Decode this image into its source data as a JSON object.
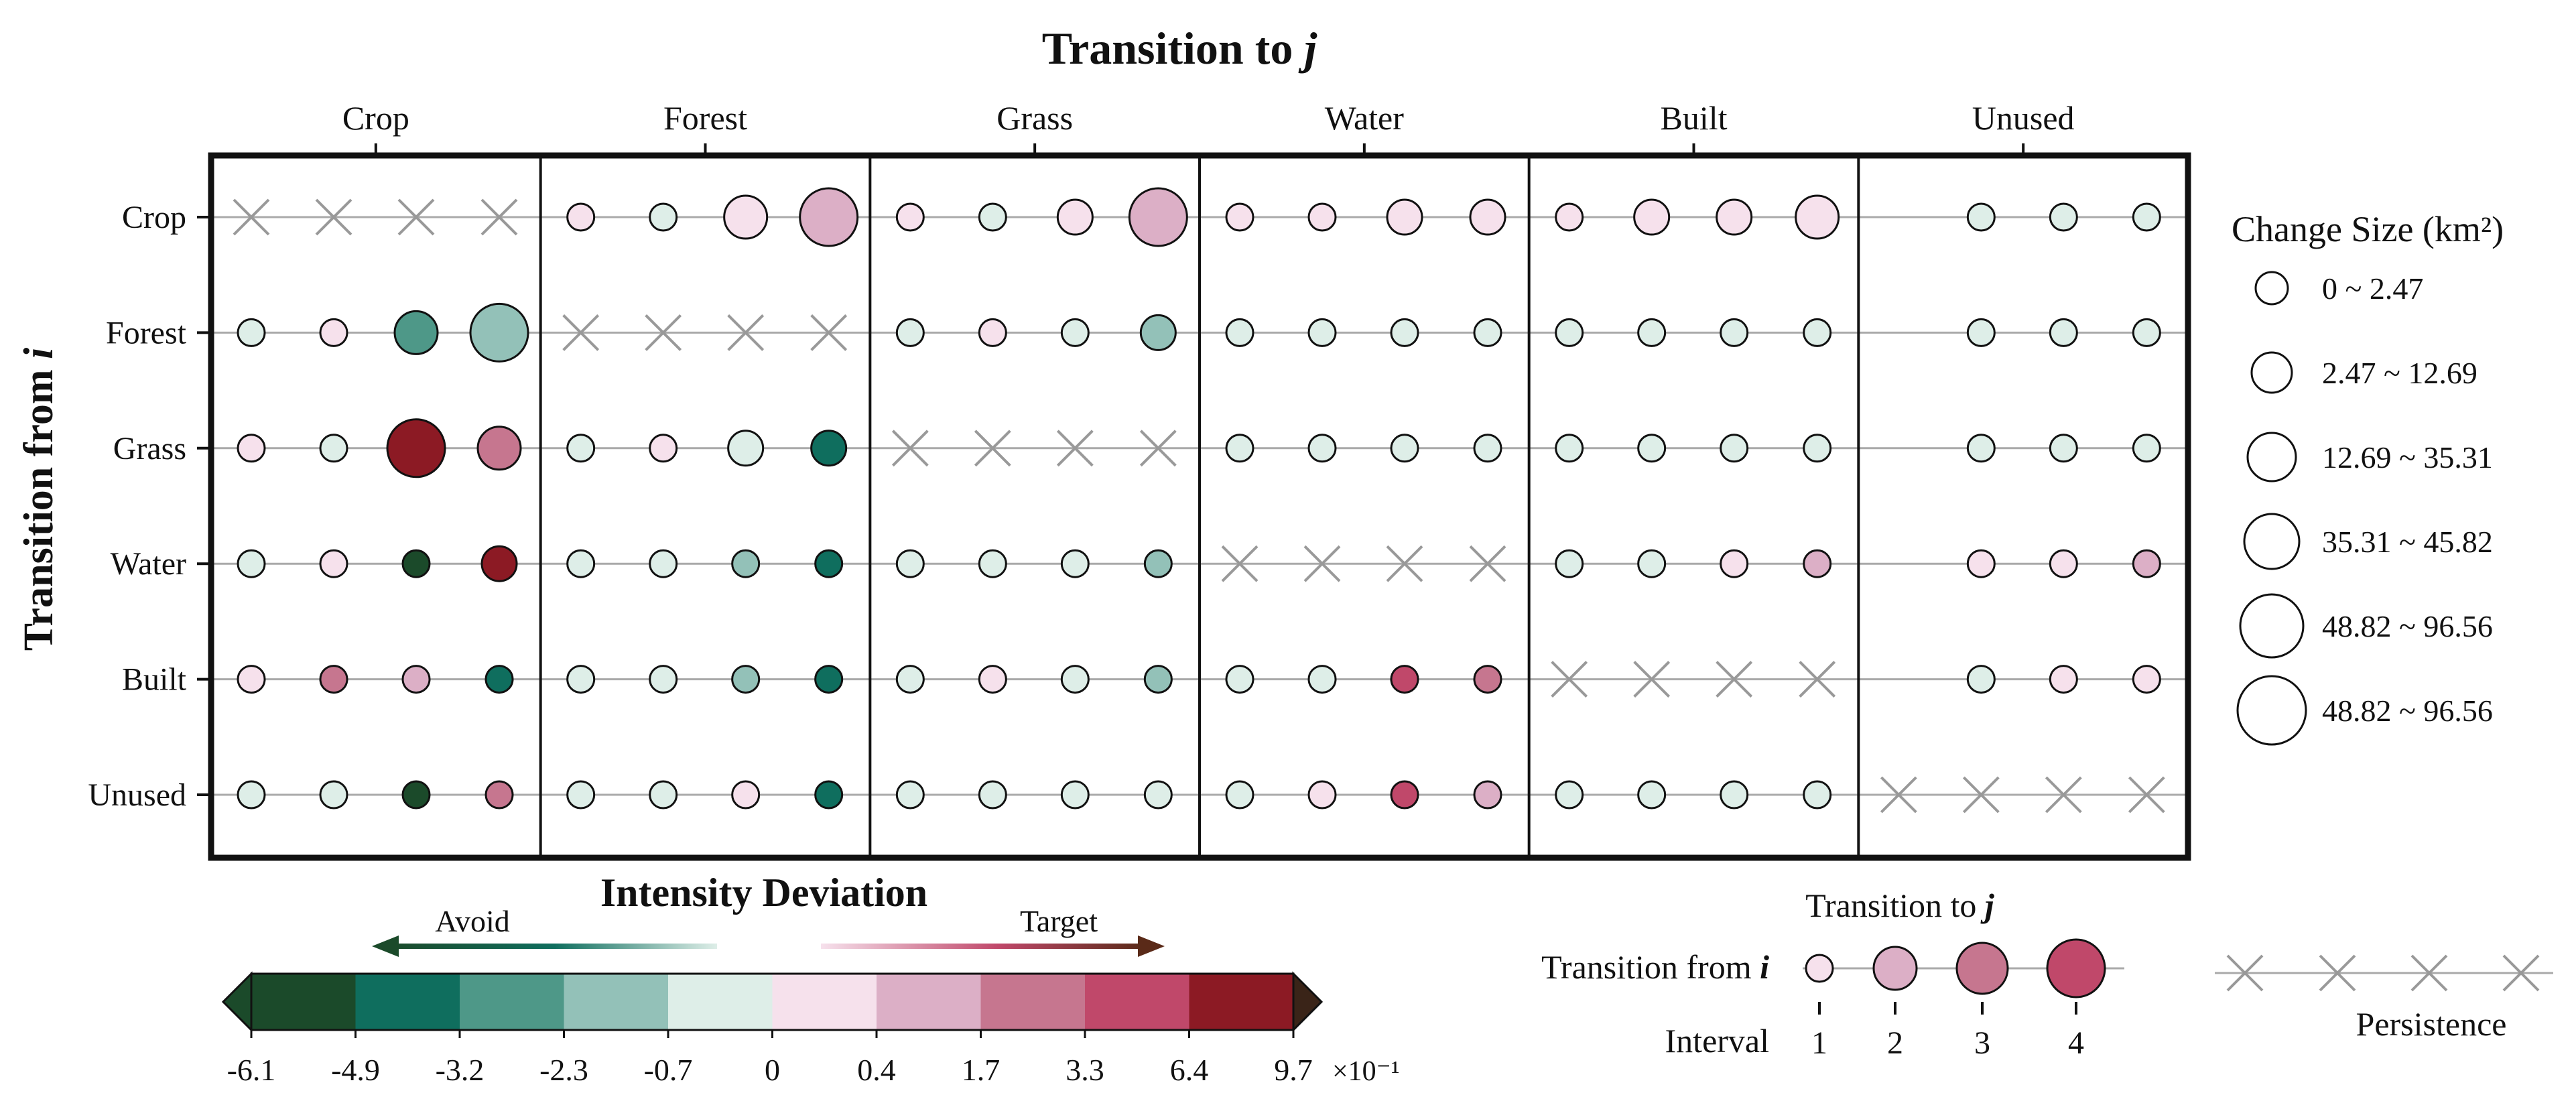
{
  "chart_data": {
    "type": "matrix-bubble",
    "title_prefix": "Transition to ",
    "title_var": "j",
    "ylabel_prefix": "Transition from ",
    "ylabel_var": "i",
    "categories": [
      "Crop",
      "Forest",
      "Grass",
      "Water",
      "Built",
      "Unused"
    ],
    "intervals": [
      1,
      2,
      3,
      4
    ],
    "colorbar": {
      "title": "Intensity Deviation",
      "avoid_label": "Avoid",
      "target_label": "Target",
      "ticks": [
        "-6.1",
        "-4.9",
        "-3.2",
        "-2.3",
        "-0.7",
        "0",
        "0.4",
        "1.7",
        "3.3",
        "6.4",
        "9.7"
      ],
      "scale_label": "×10⁻¹",
      "colors": [
        "#1b4a2a",
        "#0f6e5e",
        "#4e9888",
        "#93c1b8",
        "#deeee8",
        "#f6e1ec",
        "#dcafc6",
        "#c6768f",
        "#c0486a",
        "#8c1a24"
      ]
    },
    "size_legend": {
      "title": "Change Size (km²)",
      "entries": [
        "0 ~ 2.47",
        "2.47 ~ 12.69",
        "12.69 ~ 35.31",
        "35.31 ~ 45.82",
        "48.82 ~ 96.56",
        "48.82 ~ 96.56"
      ]
    },
    "interval_legend": {
      "top_prefix": "Transition to ",
      "top_var": "j",
      "left_prefix": "Transition from ",
      "left_var": "i",
      "interval_label": "Interval",
      "numbers": [
        "1",
        "2",
        "3",
        "4"
      ],
      "persistence_label": "Persistence"
    },
    "cells": {
      "_note": "keys are from-class; each from-class maps to-class -> 4 intervals of [color_index (0-9), size_class (0-5)], or 'P' for persistence, null for absent",
      "Crop": {
        "Crop": "P",
        "Forest": [
          [
            5,
            0
          ],
          [
            4,
            0
          ],
          [
            5,
            2
          ],
          [
            6,
            4
          ]
        ],
        "Grass": [
          [
            5,
            0
          ],
          [
            4,
            0
          ],
          [
            5,
            1
          ],
          [
            6,
            4
          ]
        ],
        "Water": [
          [
            5,
            0
          ],
          [
            5,
            0
          ],
          [
            5,
            1
          ],
          [
            5,
            1
          ]
        ],
        "Built": [
          [
            5,
            0
          ],
          [
            5,
            1
          ],
          [
            5,
            1
          ],
          [
            5,
            2
          ]
        ],
        "Unused": [
          null,
          [
            4,
            0
          ],
          [
            4,
            0
          ],
          [
            4,
            0
          ]
        ]
      },
      "Forest": {
        "Crop": [
          [
            4,
            0
          ],
          [
            5,
            0
          ],
          [
            2,
            2
          ],
          [
            3,
            4
          ]
        ],
        "Forest": "P",
        "Grass": [
          [
            4,
            0
          ],
          [
            5,
            0
          ],
          [
            4,
            0
          ],
          [
            3,
            1
          ]
        ],
        "Water": [
          [
            4,
            0
          ],
          [
            4,
            0
          ],
          [
            4,
            0
          ],
          [
            4,
            0
          ]
        ],
        "Built": [
          [
            4,
            0
          ],
          [
            4,
            0
          ],
          [
            4,
            0
          ],
          [
            4,
            0
          ]
        ],
        "Unused": [
          null,
          [
            4,
            0
          ],
          [
            4,
            0
          ],
          [
            4,
            0
          ]
        ]
      },
      "Grass": {
        "Crop": [
          [
            5,
            0
          ],
          [
            4,
            0
          ],
          [
            9,
            4
          ],
          [
            7,
            2
          ]
        ],
        "Forest": [
          [
            4,
            0
          ],
          [
            5,
            0
          ],
          [
            4,
            1
          ],
          [
            1,
            1
          ]
        ],
        "Grass": "P",
        "Water": [
          [
            4,
            0
          ],
          [
            4,
            0
          ],
          [
            4,
            0
          ],
          [
            4,
            0
          ]
        ],
        "Built": [
          [
            4,
            0
          ],
          [
            4,
            0
          ],
          [
            4,
            0
          ],
          [
            4,
            0
          ]
        ],
        "Unused": [
          null,
          [
            4,
            0
          ],
          [
            4,
            0
          ],
          [
            4,
            0
          ]
        ]
      },
      "Water": {
        "Crop": [
          [
            4,
            0
          ],
          [
            5,
            0
          ],
          [
            0,
            0
          ],
          [
            9,
            1
          ]
        ],
        "Forest": [
          [
            4,
            0
          ],
          [
            4,
            0
          ],
          [
            3,
            0
          ],
          [
            1,
            0
          ]
        ],
        "Grass": [
          [
            4,
            0
          ],
          [
            4,
            0
          ],
          [
            4,
            0
          ],
          [
            3,
            0
          ]
        ],
        "Water": "P",
        "Built": [
          [
            4,
            0
          ],
          [
            4,
            0
          ],
          [
            5,
            0
          ],
          [
            6,
            0
          ]
        ],
        "Unused": [
          null,
          [
            5,
            0
          ],
          [
            5,
            0
          ],
          [
            6,
            0
          ]
        ]
      },
      "Built": {
        "Crop": [
          [
            5,
            0
          ],
          [
            7,
            0
          ],
          [
            6,
            0
          ],
          [
            1,
            0
          ]
        ],
        "Forest": [
          [
            4,
            0
          ],
          [
            4,
            0
          ],
          [
            3,
            0
          ],
          [
            1,
            0
          ]
        ],
        "Grass": [
          [
            4,
            0
          ],
          [
            5,
            0
          ],
          [
            4,
            0
          ],
          [
            3,
            0
          ]
        ],
        "Water": [
          [
            4,
            0
          ],
          [
            4,
            0
          ],
          [
            8,
            0
          ],
          [
            7,
            0
          ]
        ],
        "Built": "P",
        "Unused": [
          null,
          [
            4,
            0
          ],
          [
            5,
            0
          ],
          [
            5,
            0
          ]
        ]
      },
      "Unused": {
        "Crop": [
          [
            4,
            0
          ],
          [
            4,
            0
          ],
          [
            0,
            0
          ],
          [
            7,
            0
          ]
        ],
        "Forest": [
          [
            4,
            0
          ],
          [
            4,
            0
          ],
          [
            5,
            0
          ],
          [
            1,
            0
          ]
        ],
        "Grass": [
          [
            4,
            0
          ],
          [
            4,
            0
          ],
          [
            4,
            0
          ],
          [
            4,
            0
          ]
        ],
        "Water": [
          [
            4,
            0
          ],
          [
            5,
            0
          ],
          [
            8,
            0
          ],
          [
            6,
            0
          ]
        ],
        "Built": [
          [
            4,
            0
          ],
          [
            4,
            0
          ],
          [
            4,
            0
          ],
          [
            4,
            0
          ]
        ],
        "Unused": "P"
      }
    },
    "interval_legend_colors": [
      5,
      6,
      7,
      8
    ]
  }
}
